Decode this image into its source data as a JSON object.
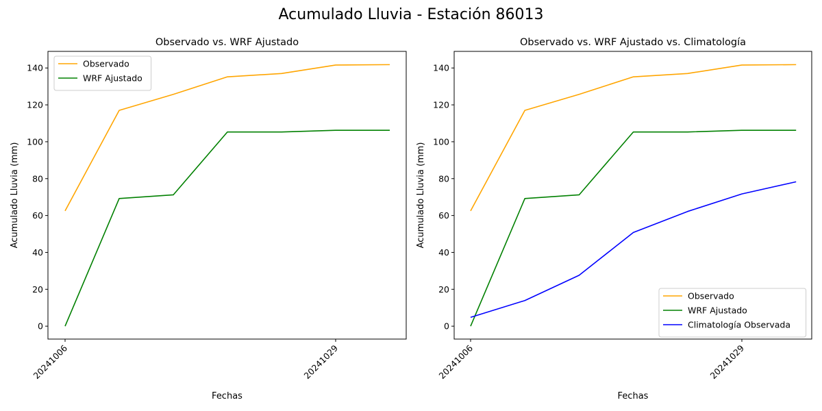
{
  "figure": {
    "suptitle": "Acumulado Lluvia - Estación 86013"
  },
  "colors": {
    "observado": "#ffa500",
    "wrf": "#008000",
    "climatologia": "#0000ff",
    "axis": "#000000"
  },
  "chart_data": [
    {
      "type": "line",
      "title": "Observado vs. WRF Ajustado",
      "xlabel": "Fechas",
      "ylabel": "Acumulado Lluvia (mm)",
      "x_index": [
        0,
        1,
        2,
        3,
        4,
        5,
        6
      ],
      "xtick_labels": [
        {
          "index": 0,
          "label": "20241006"
        },
        {
          "index": 5,
          "label": "20241029"
        }
      ],
      "ylim": [
        -7,
        149
      ],
      "yticks": [
        0,
        20,
        40,
        60,
        80,
        100,
        120,
        140
      ],
      "legend_position": "upper-left",
      "grid": false,
      "series": [
        {
          "name": "Observado",
          "color_key": "observado",
          "values": [
            62.5,
            117.0,
            125.7,
            135.2,
            137.0,
            141.6,
            141.8
          ]
        },
        {
          "name": "WRF Ajustado",
          "color_key": "wrf",
          "values": [
            0.0,
            69.2,
            71.2,
            105.3,
            105.3,
            106.2,
            106.2
          ]
        }
      ]
    },
    {
      "type": "line",
      "title": "Observado vs. WRF Ajustado vs. Climatología",
      "xlabel": "Fechas",
      "ylabel": "Acumulado Lluvia (mm)",
      "x_index": [
        0,
        1,
        2,
        3,
        4,
        5,
        6
      ],
      "xtick_labels": [
        {
          "index": 0,
          "label": "20241006"
        },
        {
          "index": 5,
          "label": "20241029"
        }
      ],
      "ylim": [
        -7,
        149
      ],
      "yticks": [
        0,
        20,
        40,
        60,
        80,
        100,
        120,
        140
      ],
      "legend_position": "lower-right",
      "grid": false,
      "series": [
        {
          "name": "Observado",
          "color_key": "observado",
          "values": [
            62.5,
            117.0,
            125.7,
            135.2,
            137.0,
            141.6,
            141.8
          ]
        },
        {
          "name": "WRF Ajustado",
          "color_key": "wrf",
          "values": [
            0.0,
            69.2,
            71.2,
            105.3,
            105.3,
            106.2,
            106.2
          ]
        },
        {
          "name": "Climatología Observada",
          "color_key": "climatologia",
          "values": [
            4.8,
            13.9,
            27.6,
            50.8,
            62.2,
            71.7,
            78.3
          ]
        }
      ]
    }
  ]
}
